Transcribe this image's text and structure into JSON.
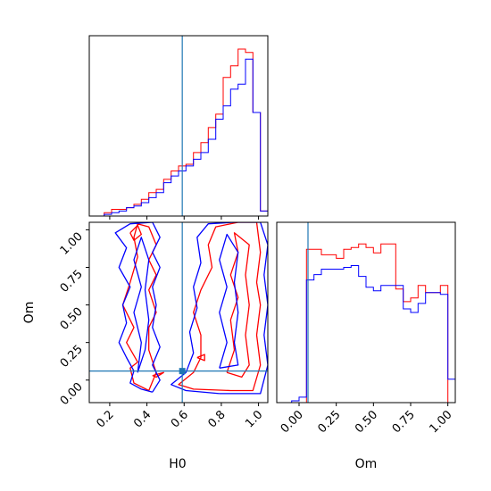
{
  "chart_data": {
    "type": "corner",
    "colors": {
      "series_a": "#ff0000",
      "series_b": "#0000ff",
      "truth": "#1f77b4"
    },
    "truths": {
      "H0": 0.59,
      "Om": 0.06
    },
    "x_labels": [
      "H0",
      "Om"
    ],
    "y_labels": [
      "Om"
    ],
    "h0_ticks": [
      "0.2",
      "0.4",
      "0.6",
      "0.8",
      "1.0"
    ],
    "om_ticks": [
      "0.00",
      "0.25",
      "0.50",
      "0.75",
      "1.00"
    ],
    "h0_range": [
      0.09,
      1.05
    ],
    "om_range": [
      -0.15,
      1.05
    ],
    "hist_h0": {
      "bins": [
        0.09,
        0.13,
        0.17,
        0.21,
        0.25,
        0.29,
        0.33,
        0.37,
        0.41,
        0.45,
        0.49,
        0.53,
        0.57,
        0.61,
        0.65,
        0.69,
        0.73,
        0.77,
        0.81,
        0.85,
        0.89,
        0.93,
        0.97,
        1.01,
        1.05
      ],
      "series": [
        {
          "values": [
            0.0,
            0.0,
            0.02,
            0.04,
            0.04,
            0.05,
            0.07,
            0.1,
            0.14,
            0.16,
            0.22,
            0.27,
            0.3,
            0.31,
            0.38,
            0.44,
            0.53,
            0.61,
            0.83,
            0.9,
            1.0,
            0.98,
            0.62,
            0.03
          ]
        },
        {
          "values": [
            0.0,
            0.0,
            0.01,
            0.02,
            0.03,
            0.05,
            0.06,
            0.08,
            0.11,
            0.14,
            0.2,
            0.24,
            0.27,
            0.3,
            0.34,
            0.38,
            0.46,
            0.58,
            0.66,
            0.76,
            0.79,
            0.94,
            0.62,
            0.03
          ]
        }
      ]
    },
    "hist_om": {
      "bins": [
        -0.15,
        -0.1,
        -0.05,
        0.0,
        0.05,
        0.1,
        0.15,
        0.2,
        0.25,
        0.3,
        0.35,
        0.4,
        0.45,
        0.5,
        0.55,
        0.6,
        0.65,
        0.7,
        0.75,
        0.8,
        0.85,
        0.9,
        0.95,
        1.0,
        1.05
      ],
      "series": [
        {
          "values": [
            0.0,
            0.0,
            0.0,
            0.0,
            0.85,
            0.85,
            0.82,
            0.82,
            0.8,
            0.85,
            0.86,
            0.88,
            0.86,
            0.83,
            0.88,
            0.88,
            0.63,
            0.56,
            0.58,
            0.65,
            0.61,
            0.61,
            0.65,
            0.0
          ]
        },
        {
          "values": [
            0.0,
            0.0,
            0.01,
            0.03,
            0.68,
            0.71,
            0.74,
            0.74,
            0.74,
            0.75,
            0.76,
            0.7,
            0.64,
            0.62,
            0.65,
            0.65,
            0.65,
            0.52,
            0.5,
            0.55,
            0.61,
            0.61,
            0.6,
            0.13
          ]
        }
      ]
    },
    "contours": [
      {
        "series": 0,
        "points": [
          [
            0.41,
            -0.07
          ],
          [
            0.33,
            -0.02
          ],
          [
            0.31,
            0.08
          ],
          [
            0.35,
            0.12
          ],
          [
            0.29,
            0.25
          ],
          [
            0.33,
            0.35
          ],
          [
            0.27,
            0.5
          ],
          [
            0.31,
            0.65
          ],
          [
            0.35,
            0.82
          ],
          [
            0.33,
            0.95
          ],
          [
            0.35,
            1.04
          ],
          [
            0.41,
            1.02
          ],
          [
            0.45,
            0.9
          ],
          [
            0.41,
            0.8
          ],
          [
            0.45,
            0.7
          ],
          [
            0.41,
            0.6
          ],
          [
            0.45,
            0.45
          ],
          [
            0.41,
            0.35
          ],
          [
            0.41,
            0.2
          ],
          [
            0.45,
            0.05
          ],
          [
            0.41,
            -0.07
          ]
        ]
      },
      {
        "series": 0,
        "points": [
          [
            0.85,
            -0.07
          ],
          [
            0.65,
            -0.06
          ],
          [
            0.57,
            -0.03
          ],
          [
            0.65,
            0.05
          ],
          [
            0.69,
            0.15
          ],
          [
            0.69,
            0.3
          ],
          [
            0.65,
            0.45
          ],
          [
            0.69,
            0.6
          ],
          [
            0.75,
            0.75
          ],
          [
            0.73,
            0.9
          ],
          [
            0.77,
            1.02
          ],
          [
            0.89,
            1.05
          ],
          [
            0.99,
            1.05
          ],
          [
            1.01,
            0.85
          ],
          [
            0.99,
            0.65
          ],
          [
            1.01,
            0.5
          ],
          [
            0.99,
            0.3
          ],
          [
            1.01,
            0.1
          ],
          [
            0.97,
            -0.07
          ],
          [
            0.85,
            -0.07
          ]
        ]
      },
      {
        "series": 0,
        "points": [
          [
            0.83,
            0.05
          ],
          [
            0.87,
            0.2
          ],
          [
            0.85,
            0.4
          ],
          [
            0.89,
            0.55
          ],
          [
            0.85,
            0.7
          ],
          [
            0.89,
            0.85
          ],
          [
            0.87,
            0.98
          ],
          [
            0.95,
            0.9
          ],
          [
            0.93,
            0.7
          ],
          [
            0.95,
            0.5
          ],
          [
            0.93,
            0.3
          ],
          [
            0.95,
            0.1
          ],
          [
            0.91,
            0.02
          ],
          [
            0.83,
            0.05
          ]
        ]
      },
      {
        "series": 0,
        "points": [
          [
            0.31,
            0.98
          ],
          [
            0.35,
            1.03
          ],
          [
            0.37,
            0.97
          ],
          [
            0.33,
            0.93
          ],
          [
            0.31,
            0.98
          ]
        ]
      },
      {
        "series": 0,
        "points": [
          [
            0.67,
            0.15
          ],
          [
            0.71,
            0.17
          ],
          [
            0.71,
            0.13
          ],
          [
            0.67,
            0.15
          ]
        ]
      },
      {
        "series": 0,
        "points": [
          [
            0.43,
            0.03
          ],
          [
            0.49,
            0.05
          ],
          [
            0.45,
            0.02
          ],
          [
            0.43,
            0.03
          ]
        ]
      },
      {
        "series": 1,
        "points": [
          [
            0.43,
            -0.08
          ],
          [
            0.37,
            -0.06
          ],
          [
            0.31,
            -0.02
          ],
          [
            0.33,
            0.06
          ],
          [
            0.29,
            0.15
          ],
          [
            0.25,
            0.25
          ],
          [
            0.29,
            0.38
          ],
          [
            0.27,
            0.5
          ],
          [
            0.31,
            0.62
          ],
          [
            0.25,
            0.75
          ],
          [
            0.29,
            0.88
          ],
          [
            0.23,
            0.98
          ],
          [
            0.31,
            1.04
          ],
          [
            0.43,
            1.05
          ],
          [
            0.47,
            0.95
          ],
          [
            0.43,
            0.85
          ],
          [
            0.47,
            0.75
          ],
          [
            0.43,
            0.62
          ],
          [
            0.45,
            0.5
          ],
          [
            0.43,
            0.35
          ],
          [
            0.47,
            0.22
          ],
          [
            0.43,
            0.1
          ],
          [
            0.47,
            0.0
          ],
          [
            0.43,
            -0.08
          ]
        ]
      },
      {
        "series": 1,
        "points": [
          [
            0.35,
            0.05
          ],
          [
            0.37,
            0.25
          ],
          [
            0.33,
            0.45
          ],
          [
            0.37,
            0.62
          ],
          [
            0.33,
            0.8
          ],
          [
            0.37,
            0.95
          ],
          [
            0.41,
            0.8
          ],
          [
            0.39,
            0.6
          ],
          [
            0.41,
            0.4
          ],
          [
            0.39,
            0.2
          ],
          [
            0.35,
            0.05
          ]
        ]
      },
      {
        "series": 1,
        "points": [
          [
            0.79,
            -0.09
          ],
          [
            0.61,
            -0.07
          ],
          [
            0.53,
            -0.03
          ],
          [
            0.61,
            0.05
          ],
          [
            0.65,
            0.18
          ],
          [
            0.63,
            0.32
          ],
          [
            0.67,
            0.48
          ],
          [
            0.65,
            0.62
          ],
          [
            0.69,
            0.78
          ],
          [
            0.67,
            0.95
          ],
          [
            0.73,
            1.04
          ],
          [
            0.87,
            1.05
          ],
          [
            1.01,
            1.05
          ],
          [
            1.05,
            0.9
          ],
          [
            1.03,
            0.7
          ],
          [
            1.05,
            0.5
          ],
          [
            1.03,
            0.3
          ],
          [
            1.05,
            0.1
          ],
          [
            1.01,
            -0.09
          ],
          [
            0.79,
            -0.09
          ]
        ]
      },
      {
        "series": 1,
        "points": [
          [
            0.79,
            0.08
          ],
          [
            0.83,
            0.25
          ],
          [
            0.79,
            0.45
          ],
          [
            0.83,
            0.62
          ],
          [
            0.79,
            0.8
          ],
          [
            0.83,
            0.97
          ],
          [
            0.89,
            0.85
          ],
          [
            0.87,
            0.65
          ],
          [
            0.89,
            0.45
          ],
          [
            0.87,
            0.25
          ],
          [
            0.89,
            0.1
          ],
          [
            0.79,
            0.08
          ]
        ]
      }
    ]
  }
}
